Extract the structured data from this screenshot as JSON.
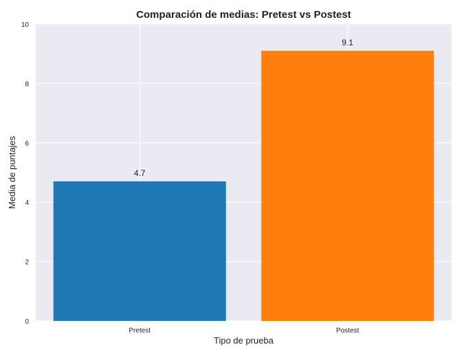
{
  "chart_data": {
    "type": "bar",
    "title": "Comparación de medias: Pretest vs Postest",
    "xlabel": "Tipo de prueba",
    "ylabel": "Media de puntajes",
    "categories": [
      "Pretest",
      "Postest"
    ],
    "values": [
      4.7,
      9.1
    ],
    "value_labels": [
      "4.7",
      "9.1"
    ],
    "colors": [
      "#1f77b4",
      "#ff7f0e"
    ],
    "ylim": [
      0,
      10
    ],
    "yticks": [
      0,
      2,
      4,
      6,
      8,
      10
    ],
    "ytick_labels": [
      "0",
      "2",
      "4",
      "6",
      "8",
      "10"
    ],
    "grid": true,
    "background_color": "#eaeaf2",
    "legend": "none"
  }
}
